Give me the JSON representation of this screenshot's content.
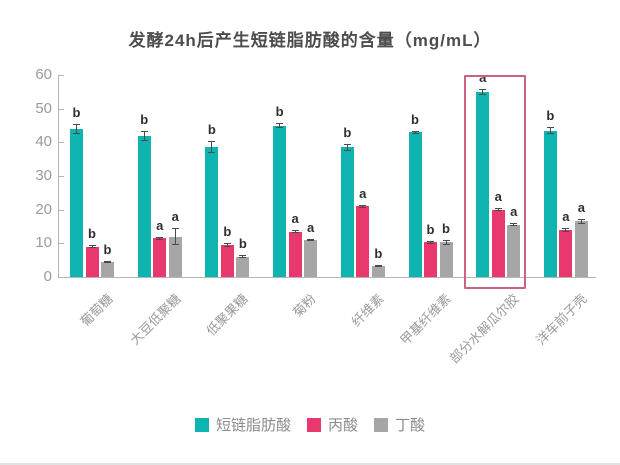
{
  "title": "发酵24h后产生短链脂肪酸的含量（mg/mL）",
  "colors": {
    "teal": "#0FB3AF",
    "pink": "#E8386D",
    "gray": "#A6A6A6",
    "highlight_box": "#C9637E",
    "axis": "#B5B5B5",
    "tick_text": "#9A9A9A",
    "letter_text": "#2F2F2F",
    "title_text": "#4D4D4D",
    "legend_text": "#8C8C8C"
  },
  "chart_data": {
    "type": "bar",
    "title": "发酵24h后产生短链脂肪酸的含量（mg/mL）",
    "xlabel": "",
    "ylabel": "",
    "ylim": [
      0,
      60
    ],
    "yticks": [
      0,
      10,
      20,
      30,
      40,
      50,
      60
    ],
    "grid": false,
    "legend_position": "bottom",
    "categories": [
      "葡萄糖",
      "大豆低聚糖",
      "低聚果糖",
      "菊粉",
      "纤维素",
      "甲基纤维素",
      "部分水解瓜尔胶",
      "洋车前子壳"
    ],
    "highlight_category_index": 6,
    "series": [
      {
        "key": "scfa",
        "name": "短链脂肪酸",
        "color": "#0FB3AF",
        "values": [
          44,
          42,
          38.5,
          45,
          38.5,
          43,
          55,
          43.5
        ],
        "errors": [
          1.5,
          1.5,
          1.8,
          0.6,
          1.0,
          0.4,
          0.8,
          1.0
        ],
        "letters": [
          "b",
          "b",
          "b",
          "b",
          "b",
          "b",
          "a",
          "b"
        ]
      },
      {
        "key": "propionic-acid",
        "name": "丙酸",
        "color": "#E8386D",
        "values": [
          9,
          11.5,
          9.5,
          13.5,
          21,
          10.3,
          20,
          14
        ],
        "errors": [
          0.4,
          0.4,
          0.6,
          0.5,
          0.4,
          0.4,
          0.5,
          0.5
        ],
        "letters": [
          "b",
          "a",
          "b",
          "a",
          "a",
          "b",
          "a",
          "a"
        ]
      },
      {
        "key": "butyric-acid",
        "name": "丁酸",
        "color": "#A6A6A6",
        "values": [
          4.5,
          12,
          6,
          11,
          3.2,
          10.3,
          15.5,
          16.5
        ],
        "errors": [
          0.3,
          2.5,
          0.5,
          0.4,
          0.3,
          0.8,
          0.4,
          0.8
        ],
        "letters": [
          "b",
          "a",
          "b",
          "a",
          "b",
          "b",
          "a",
          "a"
        ]
      }
    ]
  }
}
